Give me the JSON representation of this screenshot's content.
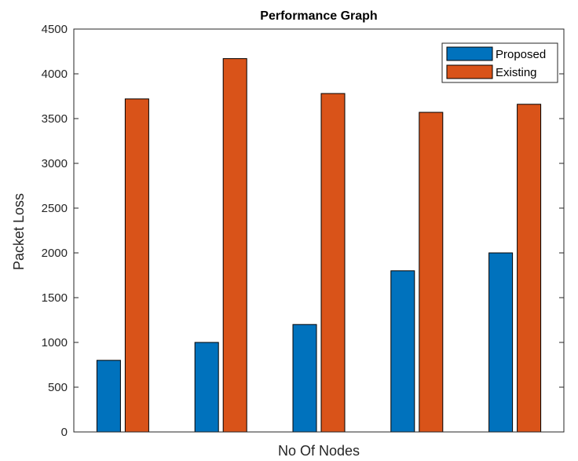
{
  "chart_data": {
    "type": "bar",
    "title": "Performance Graph",
    "xlabel": "No Of Nodes",
    "ylabel": "Packet Loss",
    "categories": [
      "",
      "",
      "",
      "",
      ""
    ],
    "ylim": [
      0,
      4500
    ],
    "yticks": [
      0,
      500,
      1000,
      1500,
      2000,
      2500,
      3000,
      3500,
      4000,
      4500
    ],
    "grid": false,
    "legend_position": "top-right",
    "series": [
      {
        "name": "Proposed",
        "color": "#0072BD",
        "values": [
          800,
          1000,
          1200,
          1800,
          2000
        ]
      },
      {
        "name": "Existing",
        "color": "#D95319",
        "values": [
          3720,
          4170,
          3780,
          3570,
          3660
        ]
      }
    ]
  }
}
